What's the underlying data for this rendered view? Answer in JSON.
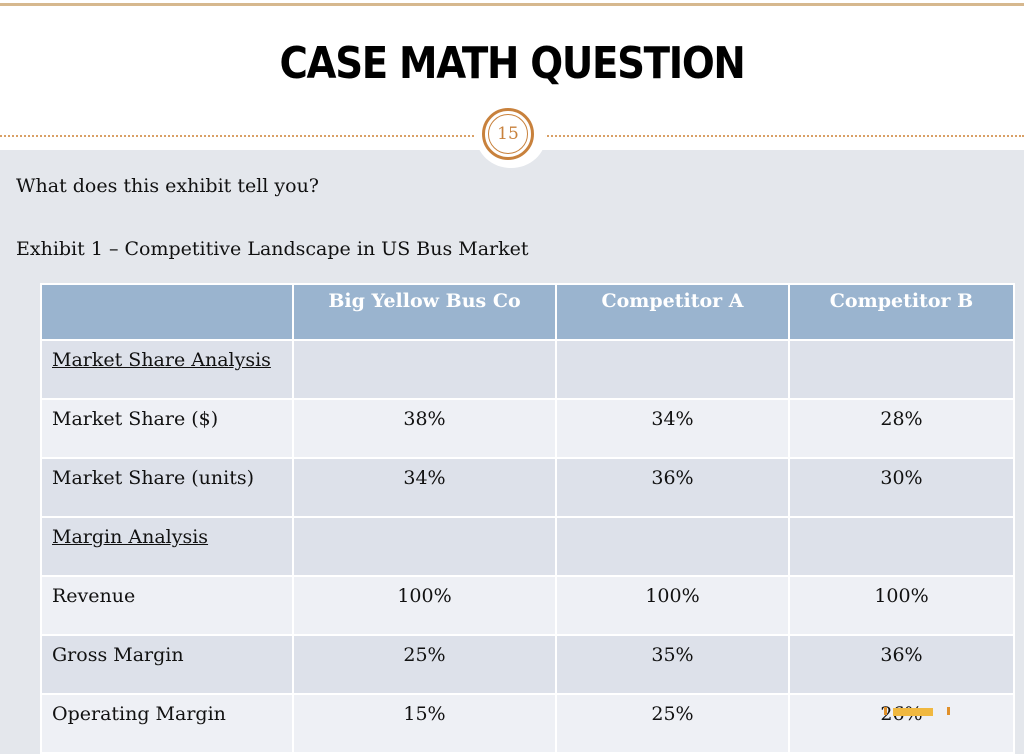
{
  "slide": {
    "title": "CASE MATH QUESTION",
    "page_number": "15",
    "question": "What does this exhibit tell you?",
    "exhibit_title": "Exhibit 1 – Competitive Landscape in US Bus Market"
  },
  "table": {
    "headers": [
      "",
      "Big Yellow Bus Co",
      "Competitor A",
      "Competitor B"
    ],
    "rows": [
      {
        "label": "Market Share Analysis",
        "section": true,
        "values": [
          "",
          "",
          ""
        ]
      },
      {
        "label": "Market Share ($)",
        "values": [
          "38%",
          "34%",
          "28%"
        ]
      },
      {
        "label": "Market Share (units)",
        "values": [
          "34%",
          "36%",
          "30%"
        ]
      },
      {
        "label": "Margin Analysis",
        "section": true,
        "values": [
          "",
          "",
          ""
        ]
      },
      {
        "label": "Revenue",
        "values": [
          "100%",
          "100%",
          "100%"
        ]
      },
      {
        "label": "Gross Margin",
        "values": [
          "25%",
          "35%",
          "36%"
        ]
      },
      {
        "label": "Operating Margin",
        "values": [
          "15%",
          "25%",
          "26%"
        ]
      }
    ]
  },
  "colors": {
    "accent": "#c8813c",
    "header_bg": "#9ab4cf"
  }
}
